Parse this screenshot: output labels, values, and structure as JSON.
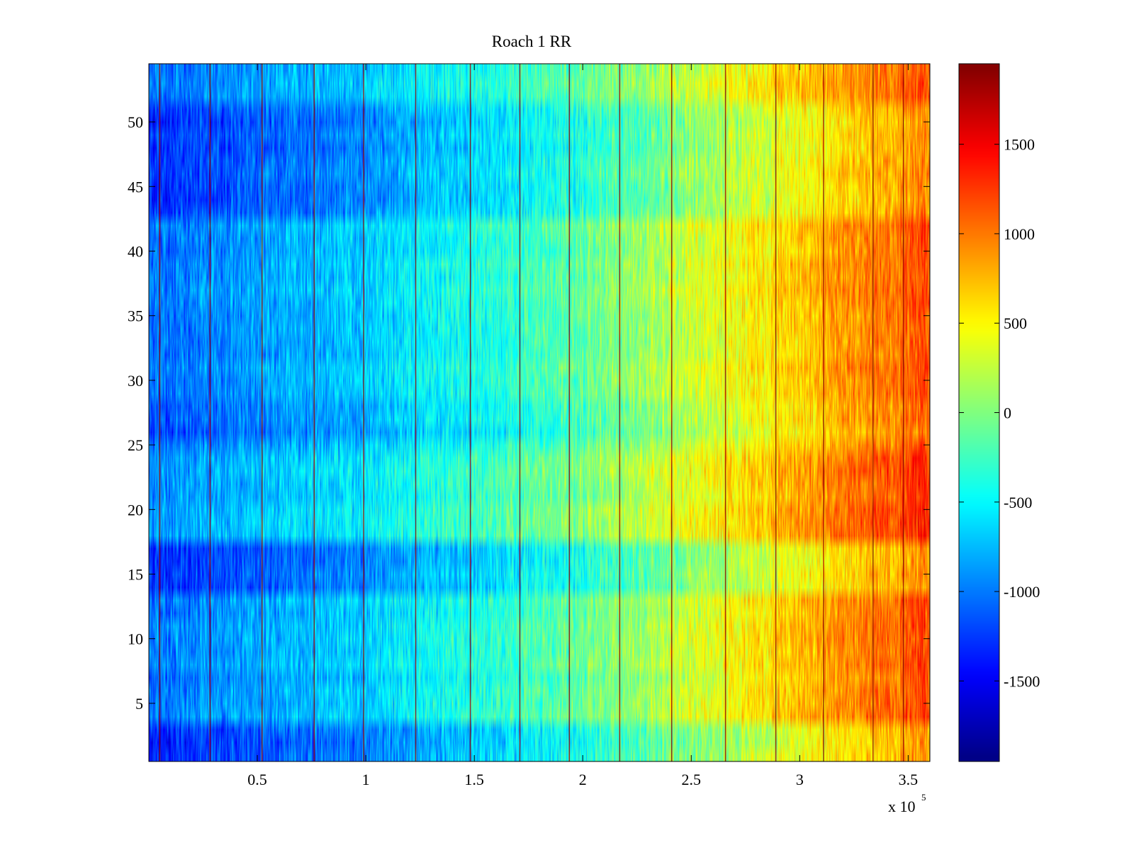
{
  "chart_data": {
    "type": "heatmap",
    "title": "Roach 1 RR",
    "xlabel": "",
    "ylabel": "",
    "x_exponent_label": {
      "base": "x 10",
      "exponent": "5"
    },
    "xlim": [
      0,
      360000
    ],
    "ylim": [
      0.5,
      54.5
    ],
    "x_ticks": [
      {
        "value": 50000,
        "label": "0.5"
      },
      {
        "value": 100000,
        "label": "1"
      },
      {
        "value": 150000,
        "label": "1.5"
      },
      {
        "value": 200000,
        "label": "2"
      },
      {
        "value": 250000,
        "label": "2.5"
      },
      {
        "value": 300000,
        "label": "3"
      },
      {
        "value": 350000,
        "label": "3.5"
      }
    ],
    "y_ticks": [
      {
        "value": 5,
        "label": "5"
      },
      {
        "value": 10,
        "label": "10"
      },
      {
        "value": 15,
        "label": "15"
      },
      {
        "value": 20,
        "label": "20"
      },
      {
        "value": 25,
        "label": "25"
      },
      {
        "value": 30,
        "label": "30"
      },
      {
        "value": 35,
        "label": "35"
      },
      {
        "value": 40,
        "label": "40"
      },
      {
        "value": 45,
        "label": "45"
      },
      {
        "value": 50,
        "label": "50"
      }
    ],
    "rows": 54,
    "colormap": "jet",
    "clim": [
      -1950,
      1950
    ],
    "colorbar": {
      "ticks": [
        {
          "value": 1500,
          "label": "1500"
        },
        {
          "value": 1000,
          "label": "1000"
        },
        {
          "value": 500,
          "label": "500"
        },
        {
          "value": 0,
          "label": "0"
        },
        {
          "value": -500,
          "label": "-500"
        },
        {
          "value": -1000,
          "label": "-1000"
        },
        {
          "value": -1500,
          "label": "-1500"
        }
      ]
    },
    "value_trend": {
      "description": "mean value increases roughly linearly along x",
      "x_points": [
        0,
        50000,
        100000,
        150000,
        200000,
        250000,
        300000,
        360000
      ],
      "mean_values": [
        -1050,
        -850,
        -650,
        -400,
        -100,
        300,
        700,
        1200
      ]
    },
    "row_offsets": [
      {
        "rows": [
          1,
          3
        ],
        "offset": -300
      },
      {
        "rows": [
          14,
          17
        ],
        "offset": -250
      },
      {
        "rows": [
          26,
          28
        ],
        "offset": -150
      },
      {
        "rows": [
          43,
          51
        ],
        "offset": -250
      },
      {
        "rows": [
          18,
          24
        ],
        "offset": 120
      }
    ],
    "vertical_lines_x": [
      5000,
      28000,
      52000,
      76000,
      99000,
      123000,
      148000,
      171000,
      194000,
      217000,
      241000,
      266000,
      289000,
      311000,
      334000,
      348000
    ],
    "vertical_line_value": 1900
  }
}
